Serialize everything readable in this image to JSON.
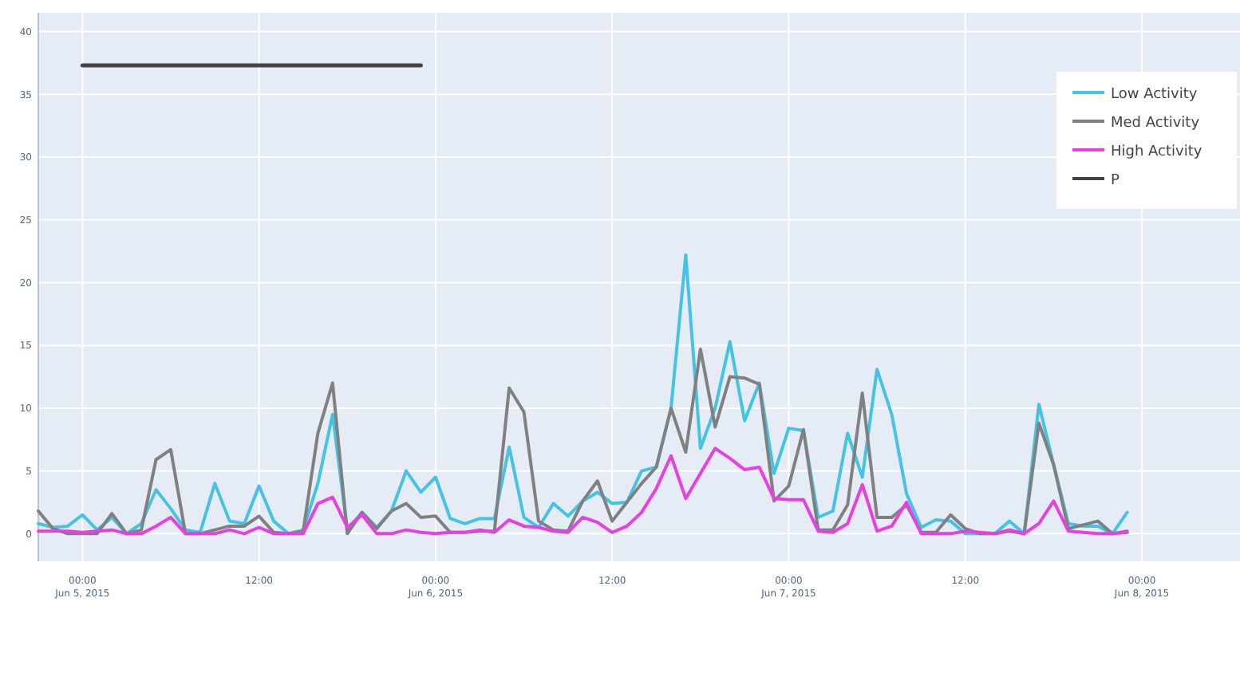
{
  "chart_data": {
    "type": "line",
    "x": [
      "2015-06-04T21:00",
      "2015-06-04T22:00",
      "2015-06-04T23:00",
      "2015-06-05T00:00",
      "2015-06-05T01:00",
      "2015-06-05T02:00",
      "2015-06-05T03:00",
      "2015-06-05T04:00",
      "2015-06-05T05:00",
      "2015-06-05T06:00",
      "2015-06-05T07:00",
      "2015-06-05T08:00",
      "2015-06-05T09:00",
      "2015-06-05T10:00",
      "2015-06-05T11:00",
      "2015-06-05T12:00",
      "2015-06-05T13:00",
      "2015-06-05T14:00",
      "2015-06-05T15:00",
      "2015-06-05T16:00",
      "2015-06-05T17:00",
      "2015-06-05T18:00",
      "2015-06-05T19:00",
      "2015-06-05T20:00",
      "2015-06-05T21:00",
      "2015-06-05T22:00",
      "2015-06-05T23:00",
      "2015-06-06T00:00",
      "2015-06-06T01:00",
      "2015-06-06T02:00",
      "2015-06-06T03:00",
      "2015-06-06T04:00",
      "2015-06-06T05:00",
      "2015-06-06T06:00",
      "2015-06-06T07:00",
      "2015-06-06T08:00",
      "2015-06-06T09:00",
      "2015-06-06T10:00",
      "2015-06-06T11:00",
      "2015-06-06T12:00",
      "2015-06-06T13:00",
      "2015-06-06T14:00",
      "2015-06-06T15:00",
      "2015-06-06T16:00",
      "2015-06-06T17:00",
      "2015-06-06T18:00",
      "2015-06-06T19:00",
      "2015-06-06T20:00",
      "2015-06-06T21:00",
      "2015-06-06T22:00",
      "2015-06-06T23:00",
      "2015-06-07T00:00",
      "2015-06-07T01:00",
      "2015-06-07T02:00",
      "2015-06-07T03:00",
      "2015-06-07T04:00",
      "2015-06-07T05:00",
      "2015-06-07T06:00",
      "2015-06-07T07:00",
      "2015-06-07T08:00",
      "2015-06-07T09:00",
      "2015-06-07T10:00",
      "2015-06-07T11:00",
      "2015-06-07T12:00",
      "2015-06-07T13:00",
      "2015-06-07T14:00",
      "2015-06-07T15:00",
      "2015-06-07T16:00",
      "2015-06-07T17:00",
      "2015-06-07T18:00",
      "2015-06-07T19:00",
      "2015-06-07T20:00",
      "2015-06-07T21:00",
      "2015-06-07T22:00",
      "2015-06-07T23:00"
    ],
    "series": [
      {
        "name": "Low Activity",
        "color": "#45c3e3",
        "values": [
          0.8,
          0.5,
          0.6,
          1.5,
          0.3,
          1.3,
          0,
          0.8,
          3.5,
          2,
          0.3,
          0.1,
          4,
          1,
          0.8,
          3.8,
          1,
          0,
          0.3,
          4,
          9.5,
          0.3,
          1.7,
          0.5,
          1.8,
          5,
          3.3,
          4.5,
          1.2,
          0.8,
          1.2,
          1.2,
          6.9,
          1.3,
          0.5,
          2.4,
          1.4,
          2.6,
          3.3,
          2.4,
          2.5,
          5,
          5.3,
          10,
          22.2,
          6.8,
          10,
          15.3,
          9,
          12,
          4.8,
          8.4,
          8.2,
          1.3,
          1.8,
          8,
          4.5,
          13.1,
          9.5,
          3.2,
          0.5,
          1.1,
          1,
          0,
          0,
          0,
          1,
          0,
          10.3,
          5.5,
          0.8,
          0.6,
          0.6,
          0,
          1.7
        ]
      },
      {
        "name": "Med Activity",
        "color": "#808080",
        "values": [
          1.8,
          0.4,
          0,
          0,
          0,
          1.6,
          0,
          0.3,
          5.9,
          6.7,
          0,
          0,
          0.3,
          0.6,
          0.6,
          1.4,
          0.1,
          0,
          0.2,
          8,
          12,
          0,
          1.7,
          0.4,
          1.8,
          2.4,
          1.3,
          1.4,
          0.1,
          0.1,
          0.2,
          0.2,
          11.6,
          9.7,
          1,
          0.3,
          0.2,
          2.6,
          4.2,
          1,
          2.5,
          4,
          5.3,
          10,
          6.5,
          14.7,
          8.5,
          12.5,
          12.4,
          11.9,
          2.6,
          3.8,
          8.3,
          0.3,
          0.3,
          2.3,
          11.2,
          1.3,
          1.3,
          2.3,
          0.1,
          0.1,
          1.5,
          0.4,
          0,
          0,
          0.2,
          0,
          8.8,
          5.5,
          0.4,
          0.7,
          1,
          0,
          0.2
        ]
      },
      {
        "name": "High Activity",
        "color": "#e83fe3",
        "values": [
          0.2,
          0.2,
          0.2,
          0.1,
          0.2,
          0.3,
          0,
          0,
          0.6,
          1.3,
          0,
          0,
          0,
          0.3,
          0,
          0.5,
          0,
          0,
          0,
          2.4,
          2.9,
          0.5,
          1.5,
          0,
          0,
          0.3,
          0.1,
          0,
          0.1,
          0.1,
          0.3,
          0.1,
          1.1,
          0.6,
          0.5,
          0.2,
          0.1,
          1.3,
          0.9,
          0.1,
          0.6,
          1.7,
          3.6,
          6.2,
          2.8,
          4.8,
          6.8,
          6,
          5.1,
          5.3,
          2.8,
          2.7,
          2.7,
          0.2,
          0.1,
          0.8,
          3.9,
          0.2,
          0.6,
          2.5,
          0,
          0,
          0,
          0.2,
          0.1,
          0,
          0.3,
          0,
          0.8,
          2.6,
          0.2,
          0.1,
          0,
          0,
          0.1
        ]
      },
      {
        "name": "P",
        "color": "#444444",
        "x": [
          "2015-06-05T00:00",
          "2015-06-05T23:00"
        ],
        "values": [
          37.3,
          37.3
        ]
      }
    ],
    "xlim": [
      "2015-06-04T21:00",
      "2015-06-08T06:40"
    ],
    "xticks": [
      {
        "value": "2015-06-05T00:00",
        "label": "00:00\nJun 5, 2015"
      },
      {
        "value": "2015-06-05T12:00",
        "label": "12:00"
      },
      {
        "value": "2015-06-06T00:00",
        "label": "00:00\nJun 6, 2015"
      },
      {
        "value": "2015-06-06T12:00",
        "label": "12:00"
      },
      {
        "value": "2015-06-07T00:00",
        "label": "00:00\nJun 7, 2015"
      },
      {
        "value": "2015-06-07T12:00",
        "label": "12:00"
      },
      {
        "value": "2015-06-08T00:00",
        "label": "00:00\nJun 8, 2015"
      }
    ],
    "ylim": [
      -2.2,
      41.5
    ],
    "yticks": [
      0,
      5,
      10,
      15,
      20,
      25,
      30,
      35,
      40
    ],
    "grid": true,
    "legend": "top right",
    "line_style": "solid",
    "marker": "none"
  }
}
